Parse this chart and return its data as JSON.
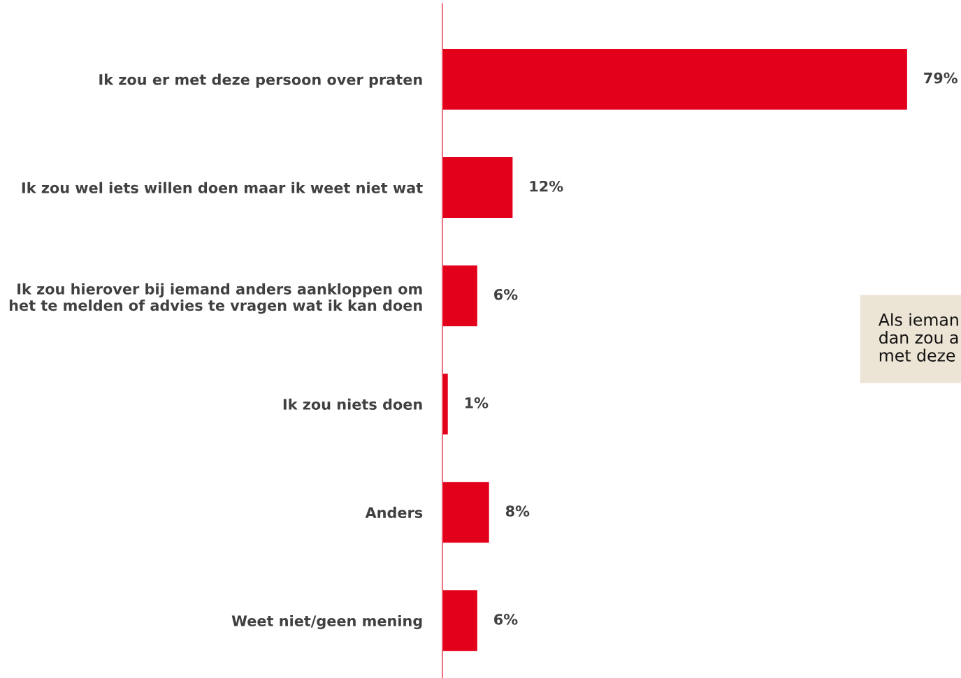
{
  "chart_data": {
    "type": "bar",
    "orientation": "horizontal",
    "categories": [
      "Ik zou er met deze persoon over praten",
      "Ik zou wel iets willen doen maar ik weet niet wat",
      "Ik zou hierover bij iemand anders aankloppen om\nhet te melden of advies te vragen wat ik kan doen",
      "Ik zou niets doen",
      "Anders",
      "Weet niet/geen mening"
    ],
    "values": [
      79,
      12,
      6,
      1,
      8,
      6
    ],
    "value_labels": [
      "79%",
      "12%",
      "6%",
      "1%",
      "8%",
      "6%"
    ],
    "color": "#e2001a",
    "annotations": [
      "Als ieman\ndan zou a\nmet deze"
    ]
  }
}
